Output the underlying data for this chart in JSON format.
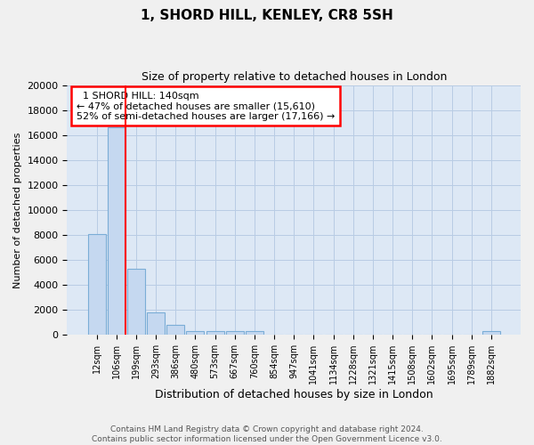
{
  "title1": "1, SHORD HILL, KENLEY, CR8 5SH",
  "title2": "Size of property relative to detached houses in London",
  "xlabel": "Distribution of detached houses by size in London",
  "ylabel": "Number of detached properties",
  "bar_labels": [
    "12sqm",
    "106sqm",
    "199sqm",
    "293sqm",
    "386sqm",
    "480sqm",
    "573sqm",
    "667sqm",
    "760sqm",
    "854sqm",
    "947sqm",
    "1041sqm",
    "1134sqm",
    "1228sqm",
    "1321sqm",
    "1415sqm",
    "1508sqm",
    "1602sqm",
    "1695sqm",
    "1789sqm",
    "1882sqm"
  ],
  "bar_values": [
    8100,
    16600,
    5300,
    1800,
    800,
    300,
    300,
    300,
    300,
    0,
    0,
    0,
    0,
    0,
    0,
    0,
    0,
    0,
    0,
    0,
    300
  ],
  "bar_color": "#c5d8f0",
  "bar_edge_color": "#7badd6",
  "bg_color": "#dde8f5",
  "grid_color": "#b8cce4",
  "fig_bg": "#f0f0f0",
  "red_line_x": 1.48,
  "annotation_title": "1 SHORD HILL: 140sqm",
  "annotation_line1": "← 47% of detached houses are smaller (15,610)",
  "annotation_line2": "52% of semi-detached houses are larger (17,166) →",
  "footer1": "Contains HM Land Registry data © Crown copyright and database right 2024.",
  "footer2": "Contains public sector information licensed under the Open Government Licence v3.0.",
  "ylim": [
    0,
    20000
  ],
  "yticks": [
    0,
    2000,
    4000,
    6000,
    8000,
    10000,
    12000,
    14000,
    16000,
    18000,
    20000
  ]
}
